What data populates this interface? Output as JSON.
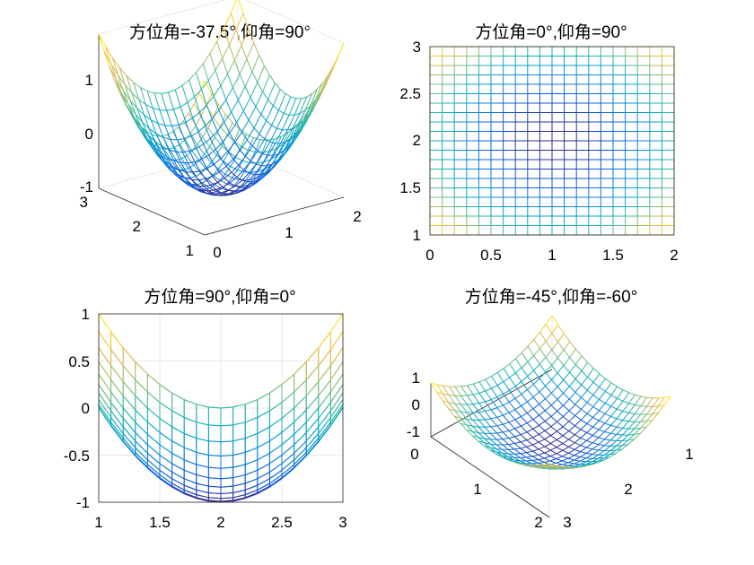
{
  "chart_data": [
    {
      "type": "mesh",
      "function": "z = (x-1)^2 + (y-2)^2 - 1",
      "x": {
        "range": [
          0,
          2
        ],
        "step": 0.1
      },
      "y": {
        "range": [
          1,
          3
        ],
        "step": 0.1
      },
      "z_range": [
        -1,
        1
      ],
      "colormap": "parula",
      "title": "方位角=-37.5°,仰角=90°",
      "xticks": [
        "0",
        "1",
        "2"
      ],
      "yticks": [
        "1",
        "2",
        "3"
      ],
      "zticks": [
        "-1",
        "0",
        "1"
      ],
      "grid": true
    },
    {
      "type": "mesh",
      "function": "z = (x-1)^2 + (y-2)^2 - 1",
      "x": {
        "range": [
          0,
          2
        ],
        "step": 0.1
      },
      "y": {
        "range": [
          1,
          3
        ],
        "step": 0.1
      },
      "colormap": "parula",
      "title": "方位角=0°,仰角=90°",
      "xticks": [
        "0",
        "0.5",
        "1",
        "1.5",
        "2"
      ],
      "yticks": [
        "1",
        "1.5",
        "2",
        "2.5",
        "3"
      ],
      "view": "top"
    },
    {
      "type": "mesh",
      "function": "z = (x-1)^2 + (y-2)^2 - 1",
      "x": {
        "range": [
          0,
          2
        ],
        "step": 0.1
      },
      "y": {
        "range": [
          1,
          3
        ],
        "step": 0.1
      },
      "colormap": "parula",
      "title": "方位角=90°,仰角=0°",
      "hticks": [
        "1",
        "1.5",
        "2",
        "2.5",
        "3"
      ],
      "vticks": [
        "-1",
        "-0.5",
        "0",
        "0.5",
        "1"
      ],
      "view": "side",
      "grid": true
    },
    {
      "type": "mesh",
      "function": "z = (x-1)^2 + (y-2)^2 - 1",
      "x": {
        "range": [
          0,
          2
        ],
        "step": 0.1
      },
      "y": {
        "range": [
          1,
          3
        ],
        "step": 0.1
      },
      "colormap": "parula",
      "title": "方位角=-45°,仰角=-60°",
      "xticks": [
        "0",
        "1",
        "2"
      ],
      "yticks": [
        "1",
        "2",
        "3"
      ],
      "zticks": [
        "-1",
        "0",
        "1"
      ],
      "grid": true
    }
  ]
}
